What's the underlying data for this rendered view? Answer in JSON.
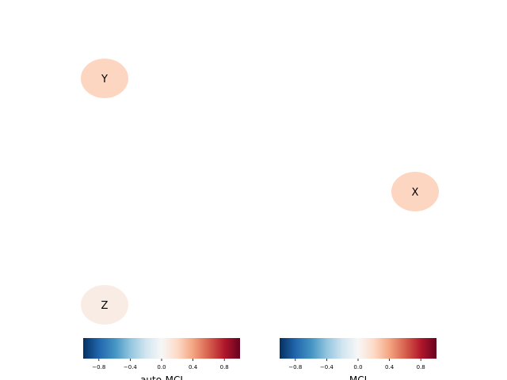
{
  "nodes": [
    {
      "label": "Y",
      "value": 0.22
    },
    {
      "label": "X",
      "value": 0.22
    },
    {
      "label": "Z",
      "value": 0.08
    }
  ],
  "colorbars": [
    {
      "label": "auto-MCI",
      "lim": [
        -1,
        1
      ],
      "ticks": [
        {
          "value": -0.8,
          "label": "−0.8"
        },
        {
          "value": -0.4,
          "label": "−0.4"
        },
        {
          "value": 0,
          "label": "0.0"
        },
        0.4,
        0.8
      ]
    },
    {
      "label": "MCI",
      "lim": [
        -1,
        1
      ],
      "ticks": [
        {
          "value": -0.8,
          "label": "−0.8"
        },
        {
          "value": -0.4,
          "label": "−0.4"
        },
        {
          "value": 0,
          "label": "0.0"
        },
        0.4,
        0.8
      ]
    }
  ]
}
